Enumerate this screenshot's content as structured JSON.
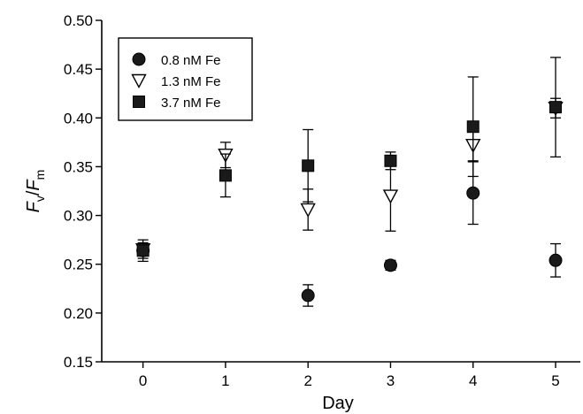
{
  "chart_data": {
    "type": "scatter",
    "title": "",
    "xlabel": "Day",
    "ylabel": {
      "main": "F",
      "sub1": "v",
      "slash": "/",
      "main2": "F",
      "sub2": "m"
    },
    "x_ticks": [
      "0",
      "1",
      "2",
      "3",
      "4",
      "5"
    ],
    "y_ticks": [
      "0.15",
      "0.20",
      "0.25",
      "0.30",
      "0.35",
      "0.40",
      "0.45",
      "0.50"
    ],
    "xlim": [
      -0.5,
      5.3
    ],
    "ylim": [
      0.15,
      0.5
    ],
    "grid": false,
    "legend_position": "top-left",
    "series": [
      {
        "name": "0.8 nM Fe",
        "marker": "filled-circle",
        "x": [
          0,
          2,
          3,
          4,
          5
        ],
        "y": [
          0.264,
          0.218,
          0.249,
          0.323,
          0.254
        ],
        "err": [
          0.011,
          0.011,
          0.005,
          0.032,
          0.017
        ]
      },
      {
        "name": "1.3 nM Fe",
        "marker": "open-triangle-down",
        "x": [
          0,
          1,
          2,
          3,
          4,
          5
        ],
        "y": [
          0.265,
          0.362,
          0.306,
          0.32,
          0.372,
          0.41
        ],
        "err": [
          0.006,
          0.013,
          0.021,
          0.036,
          0.016,
          0.01
        ]
      },
      {
        "name": "3.7 nM Fe",
        "marker": "filled-square",
        "x": [
          0,
          1,
          2,
          3,
          4,
          5
        ],
        "y": [
          0.264,
          0.341,
          0.351,
          0.356,
          0.391,
          0.411
        ],
        "err": [
          0.008,
          0.022,
          0.037,
          0.009,
          0.051,
          0.051
        ]
      }
    ]
  }
}
